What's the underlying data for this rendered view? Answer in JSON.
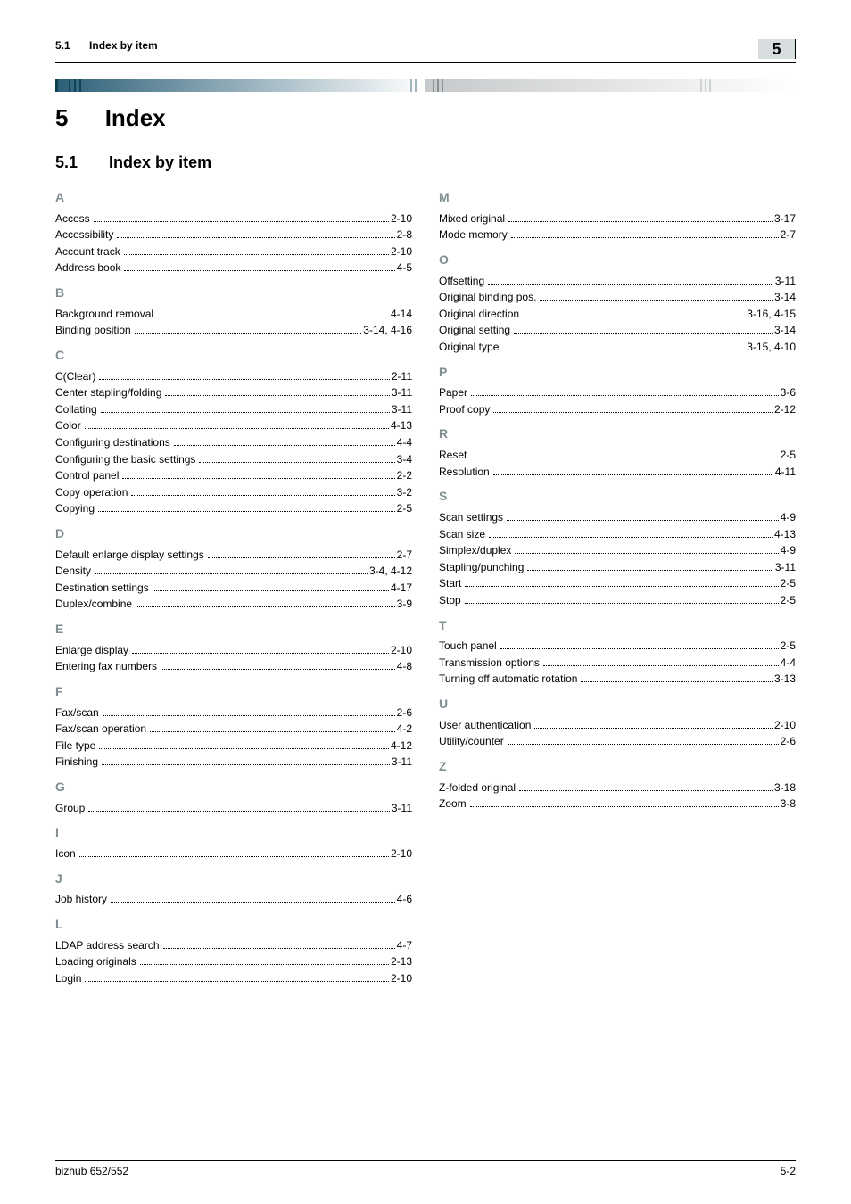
{
  "header": {
    "section_number": "5.1",
    "section_title": "Index by item",
    "chapter_badge": "5"
  },
  "chapter_heading": {
    "number": "5",
    "title": "Index"
  },
  "section_heading": {
    "number": "5.1",
    "title": "Index by item"
  },
  "footer": {
    "left": "bizhub 652/552",
    "right": "5-2"
  },
  "colors": {
    "letter_color": "#808e92",
    "text_color": "#000000",
    "strip_dark": "#2b5f77",
    "strip_grey": "#c6c9cb",
    "badge_bg": "#d7dddf"
  },
  "typography": {
    "body_pt": 12,
    "letter_pt": 14,
    "h1_pt": 26,
    "h2_pt": 18,
    "font_family": "Arial, Helvetica, sans-serif"
  },
  "index_left": [
    {
      "letter": "A"
    },
    {
      "term": "Access",
      "page": "2-10"
    },
    {
      "term": "Accessibility",
      "page": "2-8"
    },
    {
      "term": "Account track",
      "page": "2-10"
    },
    {
      "term": "Address book",
      "page": "4-5"
    },
    {
      "letter": "B"
    },
    {
      "term": "Background removal",
      "page": "4-14"
    },
    {
      "term": "Binding position",
      "page": "3-14, 4-16"
    },
    {
      "letter": "C"
    },
    {
      "term": "C(Clear)",
      "page": "2-11"
    },
    {
      "term": "Center stapling/folding",
      "page": "3-11"
    },
    {
      "term": "Collating",
      "page": "3-11"
    },
    {
      "term": "Color",
      "page": "4-13"
    },
    {
      "term": "Configuring destinations",
      "page": "4-4"
    },
    {
      "term": "Configuring the basic settings",
      "page": "3-4"
    },
    {
      "term": "Control panel",
      "page": "2-2"
    },
    {
      "term": "Copy operation",
      "page": "3-2"
    },
    {
      "term": "Copying",
      "page": "2-5"
    },
    {
      "letter": "D"
    },
    {
      "term": "Default enlarge display settings",
      "page": "2-7"
    },
    {
      "term": "Density",
      "page": "3-4, 4-12"
    },
    {
      "term": "Destination settings",
      "page": "4-17"
    },
    {
      "term": "Duplex/combine",
      "page": "3-9"
    },
    {
      "letter": "E"
    },
    {
      "term": "Enlarge display",
      "page": "2-10"
    },
    {
      "term": "Entering fax numbers",
      "page": "4-8"
    },
    {
      "letter": "F"
    },
    {
      "term": "Fax/scan",
      "page": "2-6"
    },
    {
      "term": "Fax/scan operation",
      "page": "4-2"
    },
    {
      "term": "File type",
      "page": "4-12"
    },
    {
      "term": "Finishing",
      "page": "3-11"
    },
    {
      "letter": "G"
    },
    {
      "term": "Group",
      "page": "3-11"
    },
    {
      "letter": "I"
    },
    {
      "term": "Icon",
      "page": "2-10"
    },
    {
      "letter": "J"
    },
    {
      "term": "Job history",
      "page": "4-6"
    },
    {
      "letter": "L"
    },
    {
      "term": "LDAP address search",
      "page": "4-7"
    },
    {
      "term": "Loading originals",
      "page": "2-13"
    },
    {
      "term": "Login",
      "page": "2-10"
    }
  ],
  "index_right": [
    {
      "letter": "M"
    },
    {
      "term": "Mixed original",
      "page": "3-17"
    },
    {
      "term": "Mode memory",
      "page": "2-7"
    },
    {
      "letter": "O"
    },
    {
      "term": "Offsetting",
      "page": "3-11"
    },
    {
      "term": "Original binding pos.",
      "page": "3-14"
    },
    {
      "term": "Original direction",
      "page": "3-16, 4-15"
    },
    {
      "term": "Original setting",
      "page": "3-14"
    },
    {
      "term": "Original type",
      "page": "3-15, 4-10"
    },
    {
      "letter": "P"
    },
    {
      "term": "Paper",
      "page": "3-6"
    },
    {
      "term": "Proof copy",
      "page": "2-12"
    },
    {
      "letter": "R"
    },
    {
      "term": "Reset",
      "page": "2-5"
    },
    {
      "term": "Resolution",
      "page": "4-11"
    },
    {
      "letter": "S"
    },
    {
      "term": "Scan settings",
      "page": "4-9"
    },
    {
      "term": "Scan size",
      "page": "4-13"
    },
    {
      "term": "Simplex/duplex",
      "page": "4-9"
    },
    {
      "term": "Stapling/punching",
      "page": "3-11"
    },
    {
      "term": "Start",
      "page": "2-5"
    },
    {
      "term": "Stop",
      "page": "2-5"
    },
    {
      "letter": "T"
    },
    {
      "term": "Touch panel",
      "page": "2-5"
    },
    {
      "term": "Transmission options",
      "page": "4-4"
    },
    {
      "term": "Turning off automatic rotation",
      "page": "3-13"
    },
    {
      "letter": "U"
    },
    {
      "term": "User authentication",
      "page": "2-10"
    },
    {
      "term": "Utility/counter",
      "page": "2-6"
    },
    {
      "letter": "Z"
    },
    {
      "term": "Z-folded original",
      "page": "3-18"
    },
    {
      "term": "Zoom",
      "page": "3-8"
    }
  ]
}
